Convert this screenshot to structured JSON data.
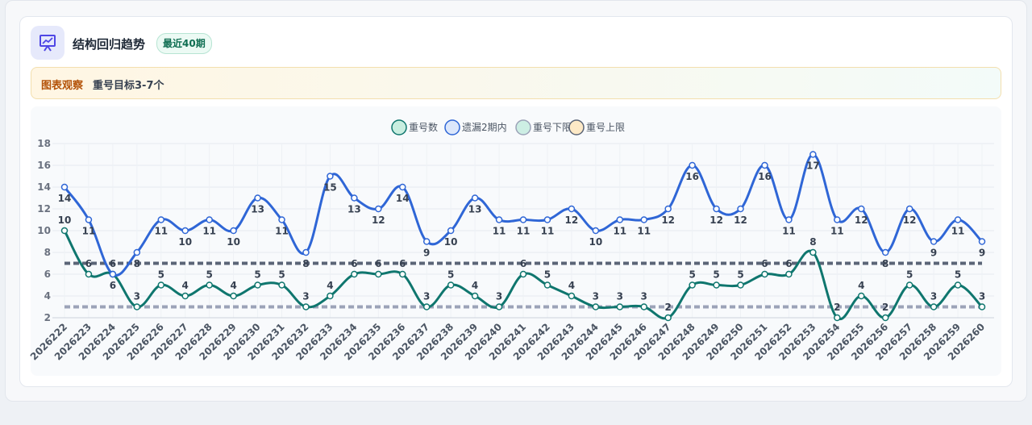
{
  "header": {
    "title": "结构回归趋势",
    "badge": "最近40期"
  },
  "banner": {
    "label": "图表观察",
    "text": "重号目标3-7个"
  },
  "chart_data": {
    "type": "line",
    "categories": [
      "2026222",
      "2026223",
      "2026224",
      "2026225",
      "2026226",
      "2026227",
      "2026228",
      "2026229",
      "2026230",
      "2026231",
      "2026232",
      "2026233",
      "2026234",
      "2026235",
      "2026236",
      "2026237",
      "2026238",
      "2026239",
      "2026240",
      "2026241",
      "2026242",
      "2026243",
      "2026244",
      "2026245",
      "2026246",
      "2026247",
      "2026248",
      "2026249",
      "2026250",
      "2026251",
      "2026252",
      "2026253",
      "2026254",
      "2026255",
      "2026256",
      "2026257",
      "2026258",
      "2026259",
      "2026260"
    ],
    "series": [
      {
        "name": "重号数",
        "color": "#0f766e",
        "legend_color": "#c8eee0",
        "values": [
          10,
          6,
          6,
          3,
          5,
          4,
          5,
          4,
          5,
          5,
          3,
          4,
          6,
          6,
          6,
          3,
          5,
          4,
          3,
          6,
          5,
          4,
          3,
          3,
          3,
          2,
          5,
          5,
          5,
          6,
          6,
          8,
          2,
          4,
          2,
          5,
          3,
          5,
          3
        ]
      },
      {
        "name": "遗漏2期内",
        "color": "#2f66d6",
        "legend_color": "#dce7fb",
        "values": [
          14,
          11,
          6,
          8,
          11,
          10,
          11,
          10,
          13,
          11,
          8,
          15,
          13,
          12,
          14,
          9,
          10,
          13,
          11,
          11,
          11,
          12,
          10,
          11,
          11,
          12,
          16,
          12,
          12,
          16,
          11,
          17,
          11,
          12,
          8,
          12,
          9,
          11,
          9
        ]
      },
      {
        "name": "重号下限",
        "color": "#9ca3b8",
        "legend_color": "#cdeee4",
        "dashed": true,
        "values": [
          3,
          3,
          3,
          3,
          3,
          3,
          3,
          3,
          3,
          3,
          3,
          3,
          3,
          3,
          3,
          3,
          3,
          3,
          3,
          3,
          3,
          3,
          3,
          3,
          3,
          3,
          3,
          3,
          3,
          3,
          3,
          3,
          3,
          3,
          3,
          3,
          3,
          3,
          3
        ]
      },
      {
        "name": "重号上限",
        "color": "#5b6577",
        "legend_color": "#fde9c6",
        "dashed": true,
        "values": [
          7,
          7,
          7,
          7,
          7,
          7,
          7,
          7,
          7,
          7,
          7,
          7,
          7,
          7,
          7,
          7,
          7,
          7,
          7,
          7,
          7,
          7,
          7,
          7,
          7,
          7,
          7,
          7,
          7,
          7,
          7,
          7,
          7,
          7,
          7,
          7,
          7,
          7,
          7
        ]
      }
    ],
    "ylim": [
      2,
      18
    ],
    "yticks": [
      2,
      4,
      6,
      8,
      10,
      12,
      14,
      16,
      18
    ],
    "grid": true
  }
}
